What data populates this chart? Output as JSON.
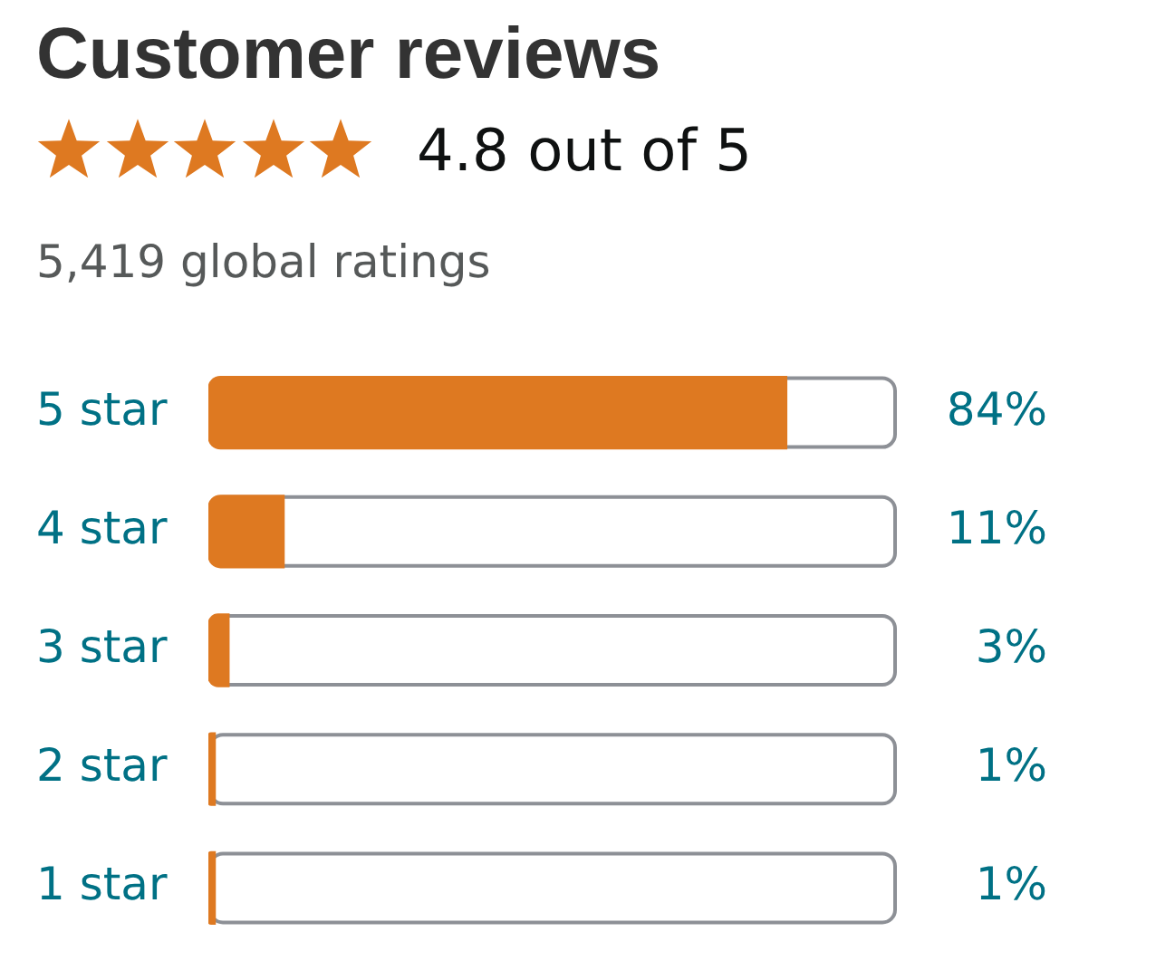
{
  "chart_data": {
    "type": "bar",
    "orientation": "horizontal",
    "title": "Customer reviews",
    "subtitle": "4.8 out of 5",
    "annotations": [
      "5,419 global ratings"
    ],
    "categories": [
      "5 star",
      "4 star",
      "3 star",
      "2 star",
      "1 star"
    ],
    "values": [
      84,
      11,
      3,
      1,
      1
    ],
    "color": "#de7921",
    "value_labels": [
      "84%",
      "11%",
      "3%",
      "1%",
      "1%"
    ],
    "xlim": [
      0,
      100
    ],
    "tick_labels": "y"
  }
}
